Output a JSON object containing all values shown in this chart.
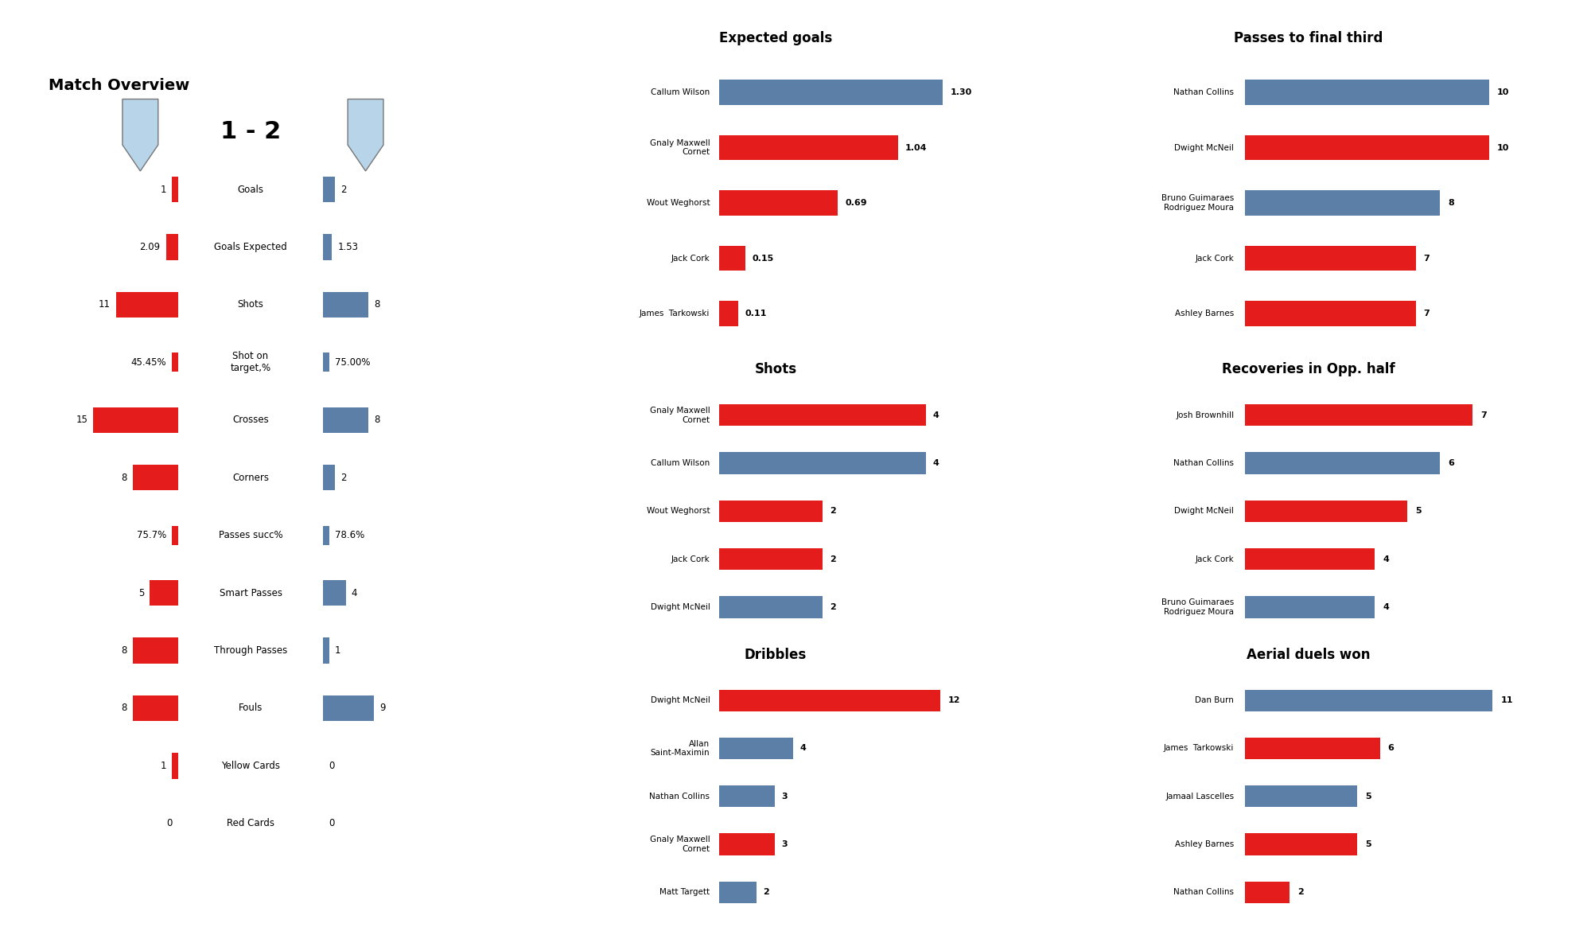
{
  "title": "Match Overview",
  "score": "1 - 2",
  "team1_color": "#e41c1c",
  "team2_color": "#5b7fa6",
  "overview_categories": [
    "Goals",
    "Goals Expected",
    "Shots",
    "Shot on\ntarget,%",
    "Crosses",
    "Corners",
    "Passes succ%",
    "Smart Passes",
    "Through Passes",
    "Fouls",
    "Yellow Cards",
    "Red Cards"
  ],
  "team1_values": [
    1,
    2.09,
    11,
    1,
    15,
    8,
    1,
    5,
    8,
    8,
    1,
    0
  ],
  "team2_values": [
    2,
    1.53,
    8,
    1,
    8,
    2,
    1,
    4,
    1,
    9,
    0,
    0
  ],
  "team1_numeric": [
    1,
    2.09,
    11,
    45.45,
    15,
    8,
    75.7,
    5,
    8,
    8,
    1,
    0
  ],
  "team2_numeric": [
    2,
    1.53,
    8,
    75.0,
    8,
    2,
    78.6,
    4,
    1,
    9,
    0,
    0
  ],
  "team1_labels": [
    "1",
    "2.09",
    "11",
    "45.45%",
    "15",
    "8",
    "75.7%",
    "5",
    "8",
    "8",
    "1",
    "0"
  ],
  "team2_labels": [
    "2",
    "1.53",
    "8",
    "75.00%",
    "8",
    "2",
    "78.6%",
    "4",
    "1",
    "9",
    "0",
    "0"
  ],
  "pct_rows": [
    3,
    6
  ],
  "xg_title": "Expected goals",
  "xg_players": [
    "Callum Wilson",
    "Gnaly Maxwell\nCornet",
    "Wout Weghorst",
    "Jack Cork",
    "James  Tarkowski"
  ],
  "xg_values": [
    1.3,
    1.04,
    0.69,
    0.15,
    0.11
  ],
  "xg_labels": [
    "1.30",
    "1.04",
    "0.69",
    "0.15",
    "0.11"
  ],
  "xg_colors": [
    "#5b7fa6",
    "#e41c1c",
    "#e41c1c",
    "#e41c1c",
    "#e41c1c"
  ],
  "shots_title": "Shots",
  "shots_players": [
    "Gnaly Maxwell\nCornet",
    "Callum Wilson",
    "Wout Weghorst",
    "Jack Cork",
    "Dwight McNeil"
  ],
  "shots_values": [
    4,
    4,
    2,
    2,
    2
  ],
  "shots_colors": [
    "#e41c1c",
    "#5b7fa6",
    "#e41c1c",
    "#e41c1c",
    "#5b7fa6"
  ],
  "dribbles_title": "Dribbles",
  "dribbles_players": [
    "Dwight McNeil",
    "Allan\nSaint-Maximin",
    "Nathan Collins",
    "Gnaly Maxwell\nCornet",
    "Matt Targett"
  ],
  "dribbles_values": [
    12,
    4,
    3,
    3,
    2
  ],
  "dribbles_colors": [
    "#e41c1c",
    "#5b7fa6",
    "#5b7fa6",
    "#e41c1c",
    "#5b7fa6"
  ],
  "passes_title": "Passes to final third",
  "passes_players": [
    "Nathan Collins",
    "Dwight McNeil",
    "Bruno Guimaraes\nRodriguez Moura",
    "Jack Cork",
    "Ashley Barnes"
  ],
  "passes_values": [
    10,
    10,
    8,
    7,
    7
  ],
  "passes_colors": [
    "#5b7fa6",
    "#e41c1c",
    "#5b7fa6",
    "#e41c1c",
    "#e41c1c"
  ],
  "recoveries_title": "Recoveries in Opp. half",
  "recoveries_players": [
    "Josh Brownhill",
    "Nathan Collins",
    "Dwight McNeil",
    "Jack Cork",
    "Bruno Guimaraes\nRodriguez Moura"
  ],
  "recoveries_values": [
    7,
    6,
    5,
    4,
    4
  ],
  "recoveries_colors": [
    "#e41c1c",
    "#5b7fa6",
    "#e41c1c",
    "#e41c1c",
    "#5b7fa6"
  ],
  "aerials_title": "Aerial duels won",
  "aerials_players": [
    "Dan Burn",
    "James  Tarkowski",
    "Jamaal Lascelles",
    "Ashley Barnes",
    "Nathan Collins"
  ],
  "aerials_values": [
    11,
    6,
    5,
    5,
    2
  ],
  "aerials_colors": [
    "#5b7fa6",
    "#e41c1c",
    "#5b7fa6",
    "#e41c1c",
    "#e41c1c"
  ],
  "bg_color": "#ffffff"
}
